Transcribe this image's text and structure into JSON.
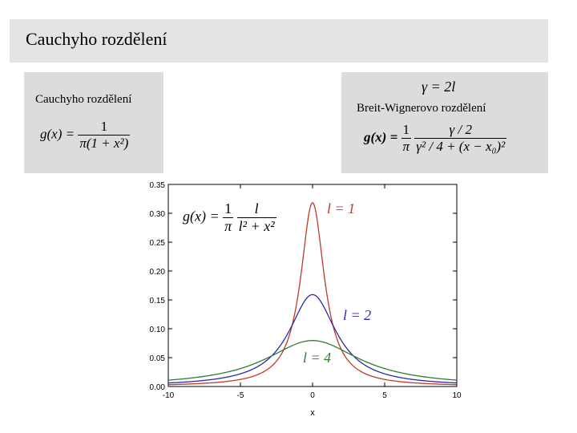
{
  "header": {
    "title": "Cauchyho rozdělení"
  },
  "left_box": {
    "title": "Cauchyho rozdělení",
    "formula_lhs": "g(x) =",
    "formula_num": "1",
    "formula_den": "π(1 + x²)"
  },
  "right_box": {
    "gamma_eq": "γ = 2l",
    "title": "Breit-Wignerovo rozdělení",
    "formula_lhs": "g(x) =",
    "formula_num1": "1",
    "formula_den1": "π",
    "formula_num2": "γ / 2",
    "formula_den2": "γ² / 4 + (x − x₀)²"
  },
  "chart_formula": {
    "lhs": "g(x) =",
    "num1": "1",
    "den1": "π",
    "num2": "l",
    "den2": "l² + x²"
  },
  "chart_data": {
    "type": "line",
    "xlabel": "x",
    "ylabel": "",
    "xlim": [
      -10,
      10
    ],
    "ylim": [
      0,
      0.35
    ],
    "x_ticks": [
      -10,
      -5,
      0,
      5,
      10
    ],
    "x_tick_labels": [
      "-10",
      "-5",
      "0",
      "5",
      "10"
    ],
    "y_ticks": [
      0,
      0.05,
      0.1,
      0.15,
      0.2,
      0.25,
      0.3,
      0.35
    ],
    "y_tick_labels": [
      "0.00",
      "0.05",
      "0.10",
      "0.15",
      "0.20",
      "0.25",
      "0.30",
      "0.35"
    ],
    "grid": false,
    "series": [
      {
        "name": "l = 1",
        "l": 1,
        "color": "#c0392b",
        "peak": 0.318
      },
      {
        "name": "l = 2",
        "l": 2,
        "color": "#2b2ba8",
        "peak": 0.159
      },
      {
        "name": "l = 4",
        "l": 4,
        "color": "#2e7d32",
        "peak": 0.08
      }
    ]
  }
}
